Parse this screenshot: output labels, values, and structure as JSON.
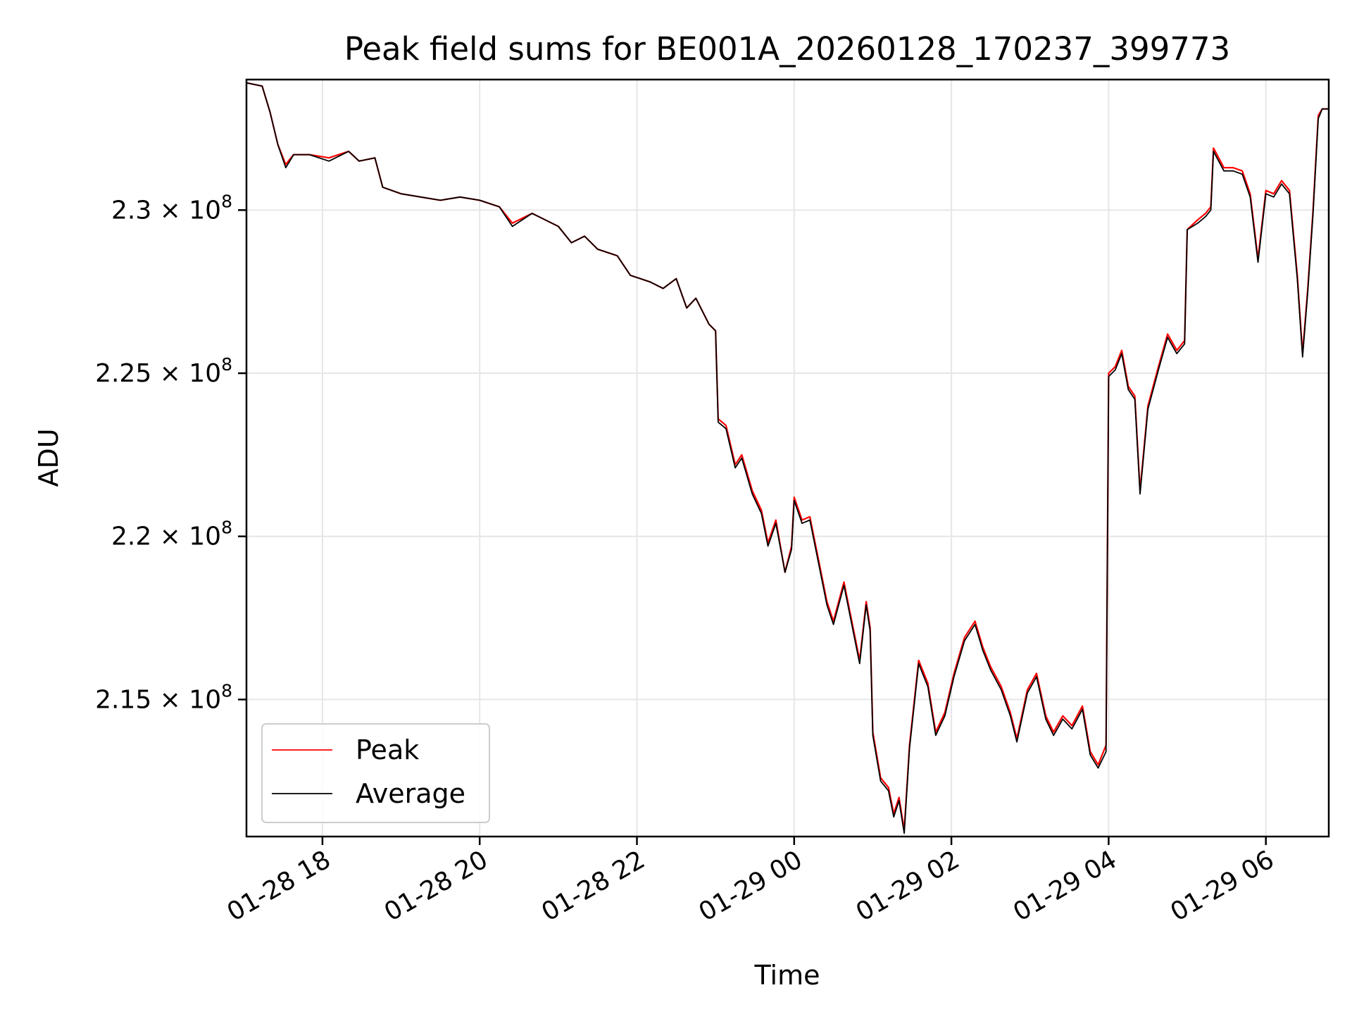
{
  "chart_data": {
    "type": "line",
    "title": "Peak field sums for BE001A_20260128_170237_399773",
    "xlabel": "Time",
    "ylabel": "ADU",
    "x_range": [
      "2026-01-28 17:02",
      "2026-01-29 06:48"
    ],
    "ylim": [
      210800000,
      234000000
    ],
    "grid": true,
    "legend_position": "lower-left",
    "x_ticks": [
      {
        "t": "2026-01-28 18:00",
        "label": "01-28 18"
      },
      {
        "t": "2026-01-28 20:00",
        "label": "01-28 20"
      },
      {
        "t": "2026-01-28 22:00",
        "label": "01-28 22"
      },
      {
        "t": "2026-01-29 00:00",
        "label": "01-29 00"
      },
      {
        "t": "2026-01-29 02:00",
        "label": "01-29 02"
      },
      {
        "t": "2026-01-29 04:00",
        "label": "01-29 04"
      },
      {
        "t": "2026-01-29 06:00",
        "label": "01-29 06"
      }
    ],
    "y_ticks": [
      {
        "value": 215000000,
        "mantissa": "2.15",
        "exponent": "8"
      },
      {
        "value": 220000000,
        "mantissa": "2.2",
        "exponent": "8"
      },
      {
        "value": 225000000,
        "mantissa": "2.25",
        "exponent": "8"
      },
      {
        "value": 230000000,
        "mantissa": "2.3",
        "exponent": "8"
      }
    ],
    "series": [
      {
        "name": "Peak",
        "color": "#ff0000",
        "points": [
          [
            "2026-01-28 17:02",
            233900000
          ],
          [
            "2026-01-28 17:14",
            233800000
          ],
          [
            "2026-01-28 17:20",
            233000000
          ],
          [
            "2026-01-28 17:26",
            232000000
          ],
          [
            "2026-01-28 17:32",
            231400000
          ],
          [
            "2026-01-28 17:38",
            231700000
          ],
          [
            "2026-01-28 17:50",
            231700000
          ],
          [
            "2026-01-28 18:05",
            231600000
          ],
          [
            "2026-01-28 18:20",
            231800000
          ],
          [
            "2026-01-28 18:28",
            231500000
          ],
          [
            "2026-01-28 18:40",
            231600000
          ],
          [
            "2026-01-28 18:46",
            230700000
          ],
          [
            "2026-01-28 19:00",
            230500000
          ],
          [
            "2026-01-28 19:30",
            230300000
          ],
          [
            "2026-01-28 19:45",
            230400000
          ],
          [
            "2026-01-28 20:00",
            230300000
          ],
          [
            "2026-01-28 20:15",
            230100000
          ],
          [
            "2026-01-28 20:25",
            229600000
          ],
          [
            "2026-01-28 20:40",
            229900000
          ],
          [
            "2026-01-28 21:00",
            229500000
          ],
          [
            "2026-01-28 21:10",
            229000000
          ],
          [
            "2026-01-28 21:20",
            229200000
          ],
          [
            "2026-01-28 21:30",
            228800000
          ],
          [
            "2026-01-28 21:45",
            228600000
          ],
          [
            "2026-01-28 21:55",
            228000000
          ],
          [
            "2026-01-28 22:10",
            227800000
          ],
          [
            "2026-01-28 22:20",
            227600000
          ],
          [
            "2026-01-28 22:30",
            227900000
          ],
          [
            "2026-01-28 22:38",
            227000000
          ],
          [
            "2026-01-28 22:45",
            227300000
          ],
          [
            "2026-01-28 22:55",
            226500000
          ],
          [
            "2026-01-28 23:00",
            226300000
          ],
          [
            "2026-01-28 23:02",
            223600000
          ],
          [
            "2026-01-28 23:08",
            223400000
          ],
          [
            "2026-01-28 23:15",
            222200000
          ],
          [
            "2026-01-28 23:20",
            222500000
          ],
          [
            "2026-01-28 23:28",
            221400000
          ],
          [
            "2026-01-28 23:35",
            220800000
          ],
          [
            "2026-01-28 23:40",
            219800000
          ],
          [
            "2026-01-28 23:46",
            220500000
          ],
          [
            "2026-01-28 23:53",
            218900000
          ],
          [
            "2026-01-28 23:58",
            219700000
          ],
          [
            "2026-01-29 00:00",
            221200000
          ],
          [
            "2026-01-29 00:06",
            220500000
          ],
          [
            "2026-01-29 00:12",
            220600000
          ],
          [
            "2026-01-29 00:18",
            219400000
          ],
          [
            "2026-01-29 00:25",
            218000000
          ],
          [
            "2026-01-29 00:30",
            217400000
          ],
          [
            "2026-01-29 00:38",
            218600000
          ],
          [
            "2026-01-29 00:45",
            217200000
          ],
          [
            "2026-01-29 00:50",
            216200000
          ],
          [
            "2026-01-29 00:55",
            218000000
          ],
          [
            "2026-01-29 00:58",
            217200000
          ],
          [
            "2026-01-29 01:00",
            214000000
          ],
          [
            "2026-01-29 01:06",
            212600000
          ],
          [
            "2026-01-29 01:12",
            212300000
          ],
          [
            "2026-01-29 01:16",
            211500000
          ],
          [
            "2026-01-29 01:20",
            212000000
          ],
          [
            "2026-01-29 01:24",
            211000000
          ],
          [
            "2026-01-29 01:28",
            213600000
          ],
          [
            "2026-01-29 01:35",
            216200000
          ],
          [
            "2026-01-29 01:42",
            215500000
          ],
          [
            "2026-01-29 01:48",
            214000000
          ],
          [
            "2026-01-29 01:55",
            214600000
          ],
          [
            "2026-01-29 02:02",
            215800000
          ],
          [
            "2026-01-29 02:10",
            216900000
          ],
          [
            "2026-01-29 02:18",
            217400000
          ],
          [
            "2026-01-29 02:24",
            216600000
          ],
          [
            "2026-01-29 02:30",
            216000000
          ],
          [
            "2026-01-29 02:38",
            215400000
          ],
          [
            "2026-01-29 02:45",
            214600000
          ],
          [
            "2026-01-29 02:50",
            213800000
          ],
          [
            "2026-01-29 02:58",
            215300000
          ],
          [
            "2026-01-29 03:05",
            215800000
          ],
          [
            "2026-01-29 03:12",
            214500000
          ],
          [
            "2026-01-29 03:18",
            214000000
          ],
          [
            "2026-01-29 03:25",
            214500000
          ],
          [
            "2026-01-29 03:32",
            214200000
          ],
          [
            "2026-01-29 03:40",
            214800000
          ],
          [
            "2026-01-29 03:46",
            213400000
          ],
          [
            "2026-01-29 03:52",
            213000000
          ],
          [
            "2026-01-29 03:58",
            213600000
          ],
          [
            "2026-01-29 04:00",
            225000000
          ],
          [
            "2026-01-29 04:05",
            225200000
          ],
          [
            "2026-01-29 04:10",
            225700000
          ],
          [
            "2026-01-29 04:15",
            224600000
          ],
          [
            "2026-01-29 04:20",
            224300000
          ],
          [
            "2026-01-29 04:24",
            221400000
          ],
          [
            "2026-01-29 04:30",
            224000000
          ],
          [
            "2026-01-29 04:38",
            225200000
          ],
          [
            "2026-01-29 04:45",
            226200000
          ],
          [
            "2026-01-29 04:52",
            225700000
          ],
          [
            "2026-01-29 04:58",
            226000000
          ],
          [
            "2026-01-29 05:00",
            229400000
          ],
          [
            "2026-01-29 05:08",
            229700000
          ],
          [
            "2026-01-29 05:14",
            229900000
          ],
          [
            "2026-01-29 05:18",
            230100000
          ],
          [
            "2026-01-29 05:20",
            231900000
          ],
          [
            "2026-01-29 05:28",
            231300000
          ],
          [
            "2026-01-29 05:35",
            231300000
          ],
          [
            "2026-01-29 05:42",
            231200000
          ],
          [
            "2026-01-29 05:48",
            230500000
          ],
          [
            "2026-01-29 05:54",
            228500000
          ],
          [
            "2026-01-29 06:00",
            230600000
          ],
          [
            "2026-01-29 06:06",
            230500000
          ],
          [
            "2026-01-29 06:12",
            230900000
          ],
          [
            "2026-01-29 06:18",
            230600000
          ],
          [
            "2026-01-29 06:24",
            228000000
          ],
          [
            "2026-01-29 06:28",
            225600000
          ],
          [
            "2026-01-29 06:32",
            227600000
          ],
          [
            "2026-01-29 06:36",
            230000000
          ],
          [
            "2026-01-29 06:40",
            232900000
          ],
          [
            "2026-01-29 06:43",
            233100000
          ],
          [
            "2026-01-29 06:48",
            233100000
          ]
        ]
      },
      {
        "name": "Average",
        "color": "#000000",
        "points": [
          [
            "2026-01-28 17:02",
            233900000
          ],
          [
            "2026-01-28 17:14",
            233800000
          ],
          [
            "2026-01-28 17:20",
            233000000
          ],
          [
            "2026-01-28 17:26",
            232000000
          ],
          [
            "2026-01-28 17:32",
            231300000
          ],
          [
            "2026-01-28 17:38",
            231700000
          ],
          [
            "2026-01-28 17:50",
            231700000
          ],
          [
            "2026-01-28 18:05",
            231500000
          ],
          [
            "2026-01-28 18:20",
            231800000
          ],
          [
            "2026-01-28 18:28",
            231500000
          ],
          [
            "2026-01-28 18:40",
            231600000
          ],
          [
            "2026-01-28 18:46",
            230700000
          ],
          [
            "2026-01-28 19:00",
            230500000
          ],
          [
            "2026-01-28 19:30",
            230300000
          ],
          [
            "2026-01-28 19:45",
            230400000
          ],
          [
            "2026-01-28 20:00",
            230300000
          ],
          [
            "2026-01-28 20:15",
            230100000
          ],
          [
            "2026-01-28 20:25",
            229500000
          ],
          [
            "2026-01-28 20:40",
            229900000
          ],
          [
            "2026-01-28 21:00",
            229500000
          ],
          [
            "2026-01-28 21:10",
            229000000
          ],
          [
            "2026-01-28 21:20",
            229200000
          ],
          [
            "2026-01-28 21:30",
            228800000
          ],
          [
            "2026-01-28 21:45",
            228600000
          ],
          [
            "2026-01-28 21:55",
            228000000
          ],
          [
            "2026-01-28 22:10",
            227800000
          ],
          [
            "2026-01-28 22:20",
            227600000
          ],
          [
            "2026-01-28 22:30",
            227900000
          ],
          [
            "2026-01-28 22:38",
            227000000
          ],
          [
            "2026-01-28 22:45",
            227300000
          ],
          [
            "2026-01-28 22:55",
            226500000
          ],
          [
            "2026-01-28 23:00",
            226300000
          ],
          [
            "2026-01-28 23:02",
            223500000
          ],
          [
            "2026-01-28 23:08",
            223300000
          ],
          [
            "2026-01-28 23:15",
            222100000
          ],
          [
            "2026-01-28 23:20",
            222400000
          ],
          [
            "2026-01-28 23:28",
            221300000
          ],
          [
            "2026-01-28 23:35",
            220700000
          ],
          [
            "2026-01-28 23:40",
            219700000
          ],
          [
            "2026-01-28 23:46",
            220400000
          ],
          [
            "2026-01-28 23:53",
            218900000
          ],
          [
            "2026-01-28 23:58",
            219600000
          ],
          [
            "2026-01-29 00:00",
            221100000
          ],
          [
            "2026-01-29 00:06",
            220400000
          ],
          [
            "2026-01-29 00:12",
            220500000
          ],
          [
            "2026-01-29 00:18",
            219300000
          ],
          [
            "2026-01-29 00:25",
            217900000
          ],
          [
            "2026-01-29 00:30",
            217300000
          ],
          [
            "2026-01-29 00:38",
            218500000
          ],
          [
            "2026-01-29 00:45",
            217100000
          ],
          [
            "2026-01-29 00:50",
            216100000
          ],
          [
            "2026-01-29 00:55",
            217900000
          ],
          [
            "2026-01-29 00:58",
            217100000
          ],
          [
            "2026-01-29 01:00",
            213900000
          ],
          [
            "2026-01-29 01:06",
            212500000
          ],
          [
            "2026-01-29 01:12",
            212200000
          ],
          [
            "2026-01-29 01:16",
            211400000
          ],
          [
            "2026-01-29 01:20",
            211900000
          ],
          [
            "2026-01-29 01:24",
            210900000
          ],
          [
            "2026-01-29 01:28",
            213500000
          ],
          [
            "2026-01-29 01:35",
            216100000
          ],
          [
            "2026-01-29 01:42",
            215400000
          ],
          [
            "2026-01-29 01:48",
            213900000
          ],
          [
            "2026-01-29 01:55",
            214500000
          ],
          [
            "2026-01-29 02:02",
            215700000
          ],
          [
            "2026-01-29 02:10",
            216800000
          ],
          [
            "2026-01-29 02:18",
            217300000
          ],
          [
            "2026-01-29 02:24",
            216500000
          ],
          [
            "2026-01-29 02:30",
            215900000
          ],
          [
            "2026-01-29 02:38",
            215300000
          ],
          [
            "2026-01-29 02:45",
            214500000
          ],
          [
            "2026-01-29 02:50",
            213700000
          ],
          [
            "2026-01-29 02:58",
            215200000
          ],
          [
            "2026-01-29 03:05",
            215700000
          ],
          [
            "2026-01-29 03:12",
            214400000
          ],
          [
            "2026-01-29 03:18",
            213900000
          ],
          [
            "2026-01-29 03:25",
            214400000
          ],
          [
            "2026-01-29 03:32",
            214100000
          ],
          [
            "2026-01-29 03:40",
            214700000
          ],
          [
            "2026-01-29 03:46",
            213300000
          ],
          [
            "2026-01-29 03:52",
            212900000
          ],
          [
            "2026-01-29 03:58",
            213400000
          ],
          [
            "2026-01-29 04:00",
            224900000
          ],
          [
            "2026-01-29 04:05",
            225100000
          ],
          [
            "2026-01-29 04:10",
            225600000
          ],
          [
            "2026-01-29 04:15",
            224500000
          ],
          [
            "2026-01-29 04:20",
            224200000
          ],
          [
            "2026-01-29 04:24",
            221300000
          ],
          [
            "2026-01-29 04:30",
            223900000
          ],
          [
            "2026-01-29 04:38",
            225100000
          ],
          [
            "2026-01-29 04:45",
            226100000
          ],
          [
            "2026-01-29 04:52",
            225600000
          ],
          [
            "2026-01-29 04:58",
            225900000
          ],
          [
            "2026-01-29 05:00",
            229400000
          ],
          [
            "2026-01-29 05:08",
            229600000
          ],
          [
            "2026-01-29 05:14",
            229800000
          ],
          [
            "2026-01-29 05:18",
            230000000
          ],
          [
            "2026-01-29 05:20",
            231800000
          ],
          [
            "2026-01-29 05:28",
            231200000
          ],
          [
            "2026-01-29 05:35",
            231200000
          ],
          [
            "2026-01-29 05:42",
            231100000
          ],
          [
            "2026-01-29 05:48",
            230400000
          ],
          [
            "2026-01-29 05:54",
            228400000
          ],
          [
            "2026-01-29 06:00",
            230500000
          ],
          [
            "2026-01-29 06:06",
            230400000
          ],
          [
            "2026-01-29 06:12",
            230800000
          ],
          [
            "2026-01-29 06:18",
            230500000
          ],
          [
            "2026-01-29 06:24",
            227900000
          ],
          [
            "2026-01-29 06:28",
            225500000
          ],
          [
            "2026-01-29 06:32",
            227500000
          ],
          [
            "2026-01-29 06:36",
            229900000
          ],
          [
            "2026-01-29 06:40",
            232800000
          ],
          [
            "2026-01-29 06:43",
            233100000
          ],
          [
            "2026-01-29 06:48",
            233100000
          ]
        ]
      }
    ]
  }
}
